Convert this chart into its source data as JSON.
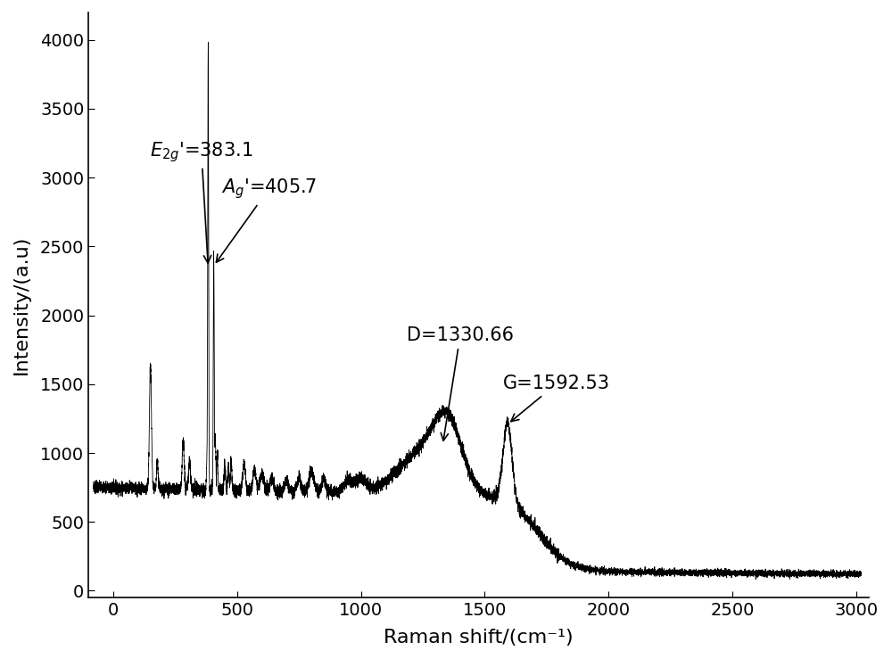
{
  "xlabel": "Raman shift/(cm⁻¹)",
  "ylabel": "Intensity/(a.u)",
  "xlim": [
    -100,
    3050
  ],
  "ylim": [
    -50,
    4200
  ],
  "xticks": [
    0,
    500,
    1000,
    1500,
    2000,
    2500,
    3000
  ],
  "yticks": [
    0,
    500,
    1000,
    1500,
    2000,
    2500,
    3000,
    3500,
    4000
  ],
  "line_color": "#000000",
  "background_color": "#ffffff",
  "axis_fontsize": 16,
  "tick_fontsize": 14,
  "annotation_fontsize": 15
}
